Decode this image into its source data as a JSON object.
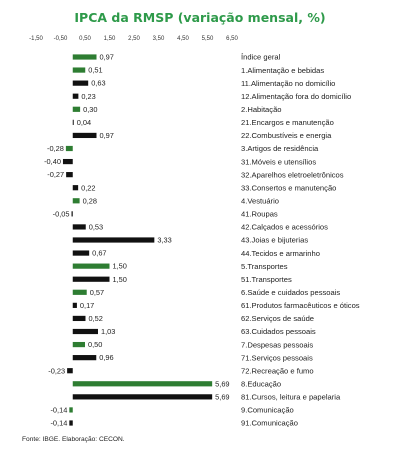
{
  "chart_data": {
    "type": "bar",
    "orientation": "horizontal",
    "title": "IPCA da RMSP (variação mensal, %)",
    "xlim": [
      -1.5,
      6.5
    ],
    "ticks": [
      "-1,50",
      "-0,50",
      "0,50",
      "1,50",
      "2,50",
      "3,50",
      "4,50",
      "5,50",
      "6,50"
    ],
    "tick_values": [
      -1.5,
      -0.5,
      0.5,
      1.5,
      2.5,
      3.5,
      4.5,
      5.5,
      6.5
    ],
    "grid": false,
    "legend": "none",
    "colors": {
      "group": "#2e7d32",
      "item": "#111111",
      "title": "#2e9a4a"
    },
    "categories": [
      "Índice geral",
      "1.Alimentação e bebidas",
      "11.Alimentação no domicílio",
      "12.Alimentação fora do domicílio",
      "2.Habitação",
      "21.Encargos e manutenção",
      "22.Combustíveis e energia",
      "3.Artigos de residência",
      "31.Móveis e utensílios",
      "32.Aparelhos eletroeletrônicos",
      "33.Consertos e manutenção",
      "4.Vestuário",
      "41.Roupas",
      "42.Calçados e acessórios",
      "43.Joias e bijuterias",
      "44.Tecidos e armarinho",
      "5.Transportes",
      "51.Transportes",
      "6.Saúde e cuidados pessoais",
      "61.Produtos farmacêuticos e óticos",
      "62.Serviços de saúde",
      "63.Cuidados pessoais",
      "7.Despesas pessoais",
      "71.Serviços pessoais",
      "72.Recreação e fumo",
      "8.Educação",
      "81.Cursos, leitura e papelaria",
      "9.Comunicação",
      "91.Comunicação"
    ],
    "values": [
      0.97,
      0.51,
      0.63,
      0.23,
      0.3,
      0.04,
      0.97,
      -0.28,
      -0.4,
      -0.27,
      0.22,
      0.28,
      -0.05,
      0.53,
      3.33,
      0.67,
      1.5,
      1.5,
      0.57,
      0.17,
      0.52,
      1.03,
      0.5,
      0.96,
      -0.23,
      5.69,
      5.69,
      -0.14,
      -0.14
    ],
    "labels": [
      "0,97",
      "0,51",
      "0,63",
      "0,23",
      "0,30",
      "0,04",
      "0,97",
      "-0,28",
      "-0,40",
      "-0,27",
      "0,22",
      "0,28",
      "-0,05",
      "0,53",
      "3,33",
      "0,67",
      "1,50",
      "1,50",
      "0,57",
      "0,17",
      "0,52",
      "1,03",
      "0,50",
      "0,96",
      "-0,23",
      "5,69",
      "5,69",
      "-0,14",
      "-0,14"
    ],
    "kinds": [
      "group",
      "group",
      "item",
      "item",
      "group",
      "item",
      "item",
      "group",
      "item",
      "item",
      "item",
      "group",
      "item",
      "item",
      "item",
      "item",
      "group",
      "item",
      "group",
      "item",
      "item",
      "item",
      "group",
      "item",
      "item",
      "group",
      "item",
      "group",
      "item"
    ],
    "source": "Fonte: IBGE. Elaboração: CECON."
  }
}
